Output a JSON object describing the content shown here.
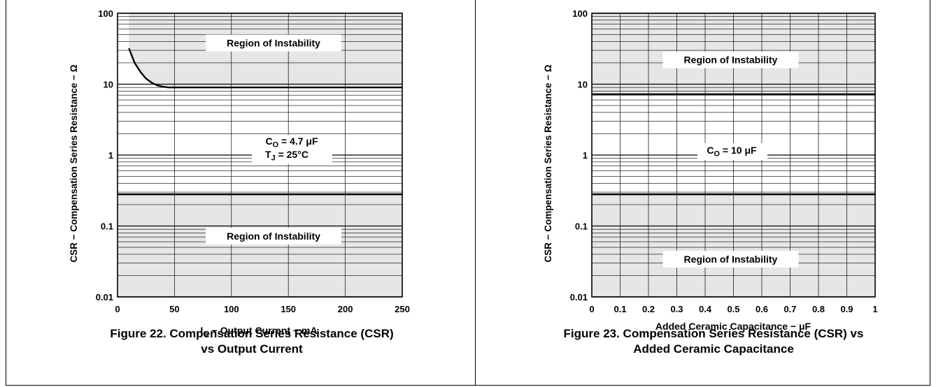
{
  "chart_data": [
    {
      "type": "line",
      "title": "",
      "caption_line1": "Figure 22. Compensation Series Resistance (CSR)",
      "caption_line2": "vs Output Current",
      "xlabel_main": "I",
      "xlabel_sub": "O",
      "xlabel_rest": " − Output Current − mA",
      "ylabel": "CSR − Compensation Series Resistance − Ω",
      "xlim": [
        0,
        250
      ],
      "ylim": [
        0.01,
        100
      ],
      "yscale": "log",
      "x_ticks": [
        "0",
        "50",
        "100",
        "150",
        "200",
        "250"
      ],
      "y_ticks": [
        "0.01",
        "0.1",
        "1",
        "10",
        "100"
      ],
      "grid": true,
      "upper_boundary": {
        "x": [
          10,
          15,
          20,
          25,
          30,
          35,
          40,
          45,
          50,
          250
        ],
        "y": [
          32,
          20,
          15,
          12,
          10.5,
          9.6,
          9.2,
          9.0,
          9.0,
          9.0
        ]
      },
      "lower_boundary": {
        "x": [
          0,
          250
        ],
        "y": [
          0.28,
          0.28
        ]
      },
      "regions": [
        {
          "label": "Region of Instability",
          "x": 137,
          "y": 38
        },
        {
          "label": "Region of Instability",
          "x": 137,
          "y": 0.072
        }
      ],
      "annotation_line1_main": "C",
      "annotation_line1_sub": "O",
      "annotation_line1_rest": " = 4.7 μF",
      "annotation_line2_main": "T",
      "annotation_line2_sub": "J",
      "annotation_line2_rest": " = 25°C"
    },
    {
      "type": "line",
      "title": "",
      "caption_line1": "Figure 23. Compensation Series Resistance (CSR) vs",
      "caption_line2": "Added Ceramic Capacitance",
      "xlabel_main": "Added Ceramic Capacitance − μF",
      "ylabel": "CSR − Compensation Series Resistance − Ω",
      "xlim": [
        0,
        1
      ],
      "ylim": [
        0.01,
        100
      ],
      "yscale": "log",
      "x_ticks": [
        "0",
        "0.1",
        "0.2",
        "0.3",
        "0.4",
        "0.5",
        "0.6",
        "0.7",
        "0.8",
        "0.9",
        "1"
      ],
      "y_ticks": [
        "0.01",
        "0.1",
        "1",
        "10",
        "100"
      ],
      "grid": true,
      "upper_boundary": {
        "x": [
          0,
          1
        ],
        "y": [
          7.2,
          7.2
        ]
      },
      "lower_boundary": {
        "x": [
          0,
          1
        ],
        "y": [
          0.28,
          0.28
        ]
      },
      "regions": [
        {
          "label": "Region of Instability",
          "x": 0.49,
          "y": 22
        },
        {
          "label": "Region of Instability",
          "x": 0.49,
          "y": 0.034
        }
      ],
      "annotation_line1_main": "C",
      "annotation_line1_sub": "O",
      "annotation_line1_rest": " = 10 μF"
    }
  ]
}
